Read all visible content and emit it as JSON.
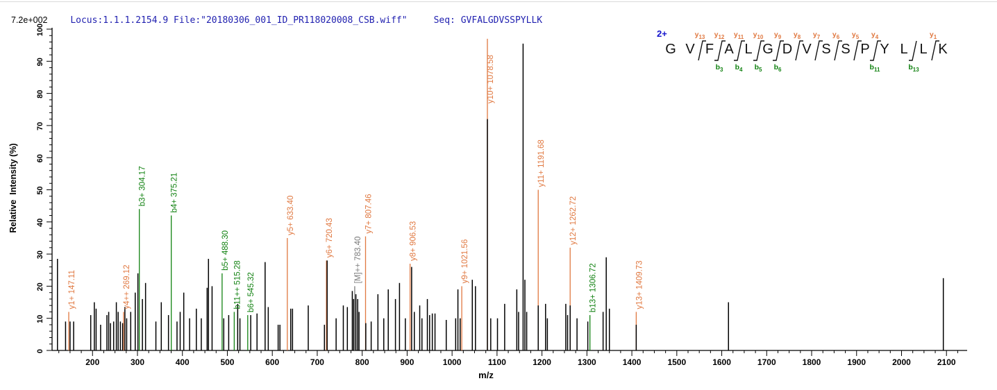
{
  "header": {
    "locus_file": "Locus:1.1.1.2154.9 File:\"20180306_001_ID_PR118020008_CSB.wiff\"",
    "seq_text": "Seq: GVFALGDVSSPYLLK"
  },
  "scale_label": "7.2e+002",
  "colors": {
    "header_text": "#2121b0",
    "charge": "#1414cc",
    "peak": "#000000",
    "y_ion": "#e07840",
    "b_ion": "#128212",
    "precursor": "#7a7a7a",
    "axis": "#000000"
  },
  "chart_data": {
    "type": "bar",
    "subtype": "ms2-fragmentation-spectrum",
    "title": "",
    "xlabel": "m/z",
    "ylabel": "Relative  Intensity (%)",
    "xlim": [
      110,
      2146
    ],
    "ylim": [
      0,
      100
    ],
    "x_ticks": [
      200,
      300,
      400,
      500,
      600,
      700,
      800,
      900,
      1000,
      1100,
      1200,
      1300,
      1400,
      1500,
      1600,
      1700,
      1800,
      1900,
      2000,
      2100
    ],
    "x_minor_step": 25,
    "y_ticks": [
      0,
      10,
      20,
      30,
      40,
      50,
      60,
      70,
      80,
      90,
      100
    ],
    "y_minor_step": 2,
    "base_peak_intensity": "7.2e+002",
    "peaks": [
      [
        122,
        28.5
      ],
      [
        140,
        9
      ],
      [
        150,
        9
      ],
      [
        158,
        9
      ],
      [
        196,
        11
      ],
      [
        204,
        15
      ],
      [
        208,
        13
      ],
      [
        218,
        8
      ],
      [
        232,
        11
      ],
      [
        236,
        12
      ],
      [
        240,
        8.5
      ],
      [
        247,
        9
      ],
      [
        253,
        15
      ],
      [
        257,
        12
      ],
      [
        262,
        9
      ],
      [
        267,
        8.5
      ],
      [
        272,
        13.5
      ],
      [
        276,
        10
      ],
      [
        285,
        12
      ],
      [
        295,
        18
      ],
      [
        301,
        24
      ],
      [
        311,
        16
      ],
      [
        318,
        21
      ],
      [
        341,
        9
      ],
      [
        353,
        15
      ],
      [
        369,
        11
      ],
      [
        388,
        9
      ],
      [
        395,
        12
      ],
      [
        403,
        18
      ],
      [
        416,
        10
      ],
      [
        431,
        13
      ],
      [
        442,
        10
      ],
      [
        455,
        19.5
      ],
      [
        458,
        28.5
      ],
      [
        466,
        20
      ],
      [
        492,
        10
      ],
      [
        503,
        11
      ],
      [
        523,
        14.5
      ],
      [
        528,
        10
      ],
      [
        552,
        11
      ],
      [
        566,
        11.5
      ],
      [
        584,
        27.5
      ],
      [
        591,
        13.5
      ],
      [
        613,
        8
      ],
      [
        617,
        8
      ],
      [
        641,
        13
      ],
      [
        645,
        13
      ],
      [
        680,
        14
      ],
      [
        716,
        8
      ],
      [
        722,
        28
      ],
      [
        742,
        10
      ],
      [
        758,
        14
      ],
      [
        767,
        13.5
      ],
      [
        778,
        18.5
      ],
      [
        781,
        16
      ],
      [
        786,
        17.5
      ],
      [
        790,
        16
      ],
      [
        793,
        12
      ],
      [
        808,
        8.5
      ],
      [
        820,
        9
      ],
      [
        835,
        17.5
      ],
      [
        848,
        10
      ],
      [
        858,
        19
      ],
      [
        874,
        16
      ],
      [
        883,
        21
      ],
      [
        896,
        10
      ],
      [
        910,
        26
      ],
      [
        916,
        12
      ],
      [
        928,
        14
      ],
      [
        933,
        10
      ],
      [
        945,
        16
      ],
      [
        950,
        11
      ],
      [
        956,
        11.5
      ],
      [
        962,
        11.5
      ],
      [
        987,
        9.5
      ],
      [
        1008,
        10
      ],
      [
        1013,
        19
      ],
      [
        1018,
        10
      ],
      [
        1045,
        22
      ],
      [
        1052,
        20
      ],
      [
        1078.58,
        72
      ],
      [
        1086,
        10
      ],
      [
        1101,
        10
      ],
      [
        1117,
        14.5
      ],
      [
        1144,
        19
      ],
      [
        1148,
        12
      ],
      [
        1158,
        95.5
      ],
      [
        1162,
        22
      ],
      [
        1166,
        12
      ],
      [
        1191.68,
        14
      ],
      [
        1208,
        14.5
      ],
      [
        1212,
        10
      ],
      [
        1253,
        14.5
      ],
      [
        1257,
        11
      ],
      [
        1262.72,
        14
      ],
      [
        1278,
        10
      ],
      [
        1302,
        9
      ],
      [
        1336,
        12
      ],
      [
        1343,
        29
      ],
      [
        1350,
        13
      ],
      [
        1409.73,
        8
      ],
      [
        1615,
        15
      ],
      [
        2093,
        22.5
      ]
    ],
    "annotated_peaks": [
      {
        "label": "y1+ 147.11",
        "ion": "y1",
        "mz": 147.11,
        "type": "y",
        "line_top_pct": 12
      },
      {
        "label": "y4++ 269.12",
        "ion": "y4",
        "mz": 269.12,
        "type": "y",
        "line_top_pct": 12
      },
      {
        "label": "b3+ 304.17",
        "ion": "b3",
        "mz": 304.17,
        "type": "b",
        "line_top_pct": 44
      },
      {
        "label": "b4+ 375.21",
        "ion": "b4",
        "mz": 375.21,
        "type": "b",
        "line_top_pct": 42
      },
      {
        "label": "b5+ 488.30",
        "ion": "b5",
        "mz": 488.3,
        "type": "b",
        "line_top_pct": 24
      },
      {
        "label": "b11++ 515.28",
        "ion": "b11",
        "mz": 515.28,
        "type": "b",
        "line_top_pct": 12
      },
      {
        "label": "b6+ 545.32",
        "ion": "b6",
        "mz": 545.32,
        "type": "b",
        "line_top_pct": 11
      },
      {
        "label": "y5+ 633.40",
        "ion": "y5",
        "mz": 633.4,
        "type": "y",
        "line_top_pct": 35
      },
      {
        "label": "y6+ 720.43",
        "ion": "y6",
        "mz": 720.43,
        "type": "y",
        "line_top_pct": 28
      },
      {
        "label": "[M]++ 783.40",
        "ion": "M",
        "mz": 783.4,
        "type": "M",
        "line_top_pct": 20
      },
      {
        "label": "y7+ 807.46",
        "ion": "y7",
        "mz": 807.46,
        "type": "y",
        "line_top_pct": 35.5
      },
      {
        "label": "y8+ 906.53",
        "ion": "y8",
        "mz": 906.53,
        "type": "y",
        "line_top_pct": 27
      },
      {
        "label": "y9+ 1021.56",
        "ion": "y9",
        "mz": 1021.56,
        "type": "y",
        "line_top_pct": 20
      },
      {
        "label": "y10+ 1078.58",
        "ion": "y10",
        "mz": 1078.58,
        "type": "y",
        "line_top_pct": 97,
        "label_top_pct": 76
      },
      {
        "label": "y11+ 1191.68",
        "ion": "y11",
        "mz": 1191.68,
        "type": "y",
        "line_top_pct": 50
      },
      {
        "label": "y12+ 1262.72",
        "ion": "y12",
        "mz": 1262.72,
        "type": "y",
        "line_top_pct": 32
      },
      {
        "label": "b13+ 1306.72",
        "ion": "b13",
        "mz": 1306.72,
        "type": "b",
        "line_top_pct": 11
      },
      {
        "label": "y13+ 1409.73",
        "ion": "y13",
        "mz": 1409.73,
        "type": "y",
        "line_top_pct": 12
      }
    ]
  },
  "sequence_panel": {
    "charge_label": "2+",
    "residues": [
      "G",
      "V",
      "F",
      "A",
      "L",
      "G",
      "D",
      "V",
      "S",
      "S",
      "P",
      "Y",
      "L",
      "L",
      "K"
    ],
    "cleavages": [
      {
        "after": 2,
        "y": "y13"
      },
      {
        "after": 3,
        "y": "y12",
        "b": "b3"
      },
      {
        "after": 4,
        "y": "y11",
        "b": "b4"
      },
      {
        "after": 5,
        "y": "y10",
        "b": "b5"
      },
      {
        "after": 6,
        "y": "y9",
        "b": "b6"
      },
      {
        "after": 7,
        "y": "y8"
      },
      {
        "after": 8,
        "y": "y7"
      },
      {
        "after": 9,
        "y": "y6"
      },
      {
        "after": 10,
        "y": "y5"
      },
      {
        "after": 11,
        "y": "y4",
        "b": "b11"
      },
      {
        "after": 13,
        "b": "b13"
      },
      {
        "after": 14,
        "y": "y1"
      }
    ]
  }
}
